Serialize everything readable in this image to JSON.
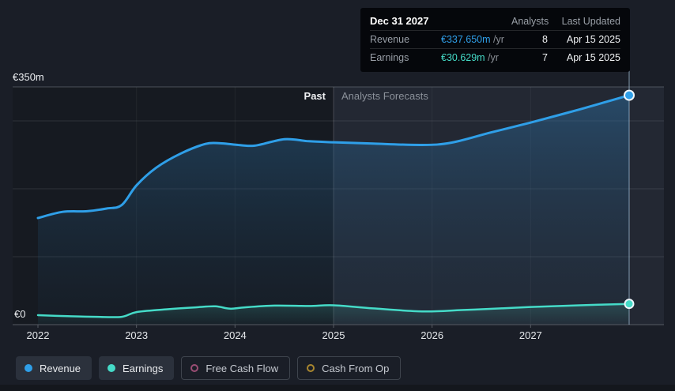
{
  "page": {
    "background": "#1a1e27"
  },
  "y_axis": {
    "top_label": "€350m",
    "bottom_label": "€0"
  },
  "x_axis_labels": [
    "2022",
    "2023",
    "2024",
    "2025",
    "2026",
    "2027"
  ],
  "annotations": {
    "past": "Past",
    "forecast": "Analysts Forecasts"
  },
  "tooltip": {
    "date": "Dec 31 2027",
    "col_analysts": "Analysts",
    "col_updated": "Last Updated",
    "rows": [
      {
        "label": "Revenue",
        "value": "€337.650m",
        "unit": " /yr",
        "analysts": "8",
        "updated": "Apr 15 2025",
        "color": "#2f9fe8"
      },
      {
        "label": "Earnings",
        "value": "€30.629m",
        "unit": " /yr",
        "analysts": "7",
        "updated": "Apr 15 2025",
        "color": "#45dbc8"
      }
    ]
  },
  "legend": {
    "items": [
      {
        "label": "Revenue",
        "color": "#2f9fe8",
        "active": true
      },
      {
        "label": "Earnings",
        "color": "#45dbc8",
        "active": true
      },
      {
        "label": "Free Cash Flow",
        "color": "#9a4d74",
        "active": false
      },
      {
        "label": "Cash From Op",
        "color": "#a8862f",
        "active": false
      }
    ]
  },
  "chart_data": {
    "type": "line",
    "title": "Past and forecast revenue / earnings",
    "x_range": {
      "start": 2022,
      "end": 2028
    },
    "x_ticks": [
      2022,
      2023,
      2024,
      2025,
      2026,
      2027
    ],
    "y_axis": {
      "min": 0,
      "max": 350,
      "unit": "€m",
      "gridlines": [
        100,
        200,
        300
      ],
      "labeled_values": [
        0,
        350
      ]
    },
    "past_forecast_divider_x": 2025,
    "hover_point_x": 2028,
    "legend_position": "bottom",
    "series": [
      {
        "name": "Revenue",
        "color": "#2f9fe8",
        "end_label": "€337.650m /yr",
        "points": [
          [
            2022.0,
            157
          ],
          [
            2022.25,
            166
          ],
          [
            2022.5,
            167
          ],
          [
            2022.7,
            171
          ],
          [
            2022.85,
            176
          ],
          [
            2023.0,
            205
          ],
          [
            2023.2,
            231
          ],
          [
            2023.45,
            252
          ],
          [
            2023.7,
            266
          ],
          [
            2023.85,
            267
          ],
          [
            2024.0,
            265
          ],
          [
            2024.2,
            263.5
          ],
          [
            2024.5,
            273
          ],
          [
            2024.75,
            270
          ],
          [
            2025.0,
            268.5
          ],
          [
            2025.4,
            266.5
          ],
          [
            2025.9,
            264.5
          ],
          [
            2026.2,
            268
          ],
          [
            2026.6,
            283
          ],
          [
            2027.0,
            297.5
          ],
          [
            2027.5,
            317
          ],
          [
            2028.0,
            337.65
          ]
        ]
      },
      {
        "name": "Earnings",
        "color": "#45dbc8",
        "end_label": "€30.629m /yr",
        "points": [
          [
            2022.0,
            14
          ],
          [
            2022.3,
            12.5
          ],
          [
            2022.6,
            11.5
          ],
          [
            2022.85,
            11.5
          ],
          [
            2023.0,
            18.5
          ],
          [
            2023.3,
            22.5
          ],
          [
            2023.6,
            25.5
          ],
          [
            2023.8,
            27
          ],
          [
            2023.95,
            23.5
          ],
          [
            2024.1,
            25.5
          ],
          [
            2024.4,
            28
          ],
          [
            2024.75,
            27.5
          ],
          [
            2025.0,
            28.5
          ],
          [
            2025.4,
            24
          ],
          [
            2025.9,
            19.5
          ],
          [
            2026.3,
            21.5
          ],
          [
            2026.7,
            24
          ],
          [
            2027.0,
            26
          ],
          [
            2027.5,
            28.5
          ],
          [
            2028.0,
            30.629
          ]
        ]
      }
    ]
  }
}
